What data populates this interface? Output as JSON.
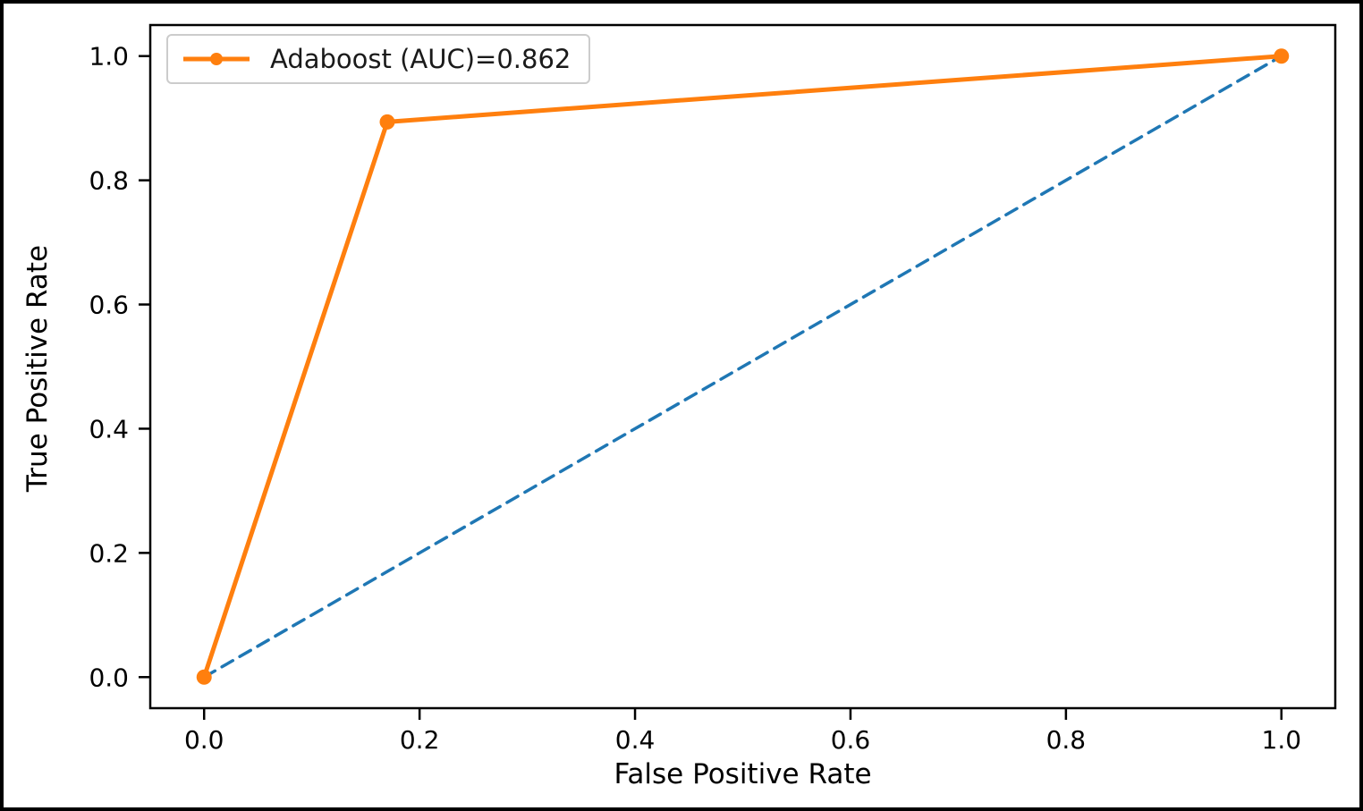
{
  "figure": {
    "background": "#ffffff",
    "border_color": "#000000"
  },
  "chart_data": {
    "type": "line",
    "title": "",
    "xlabel": "False Positive Rate",
    "ylabel": "True Positive Rate",
    "xlim": [
      -0.05,
      1.05
    ],
    "ylim": [
      -0.05,
      1.05
    ],
    "xtick_labels": [
      "0.0",
      "0.2",
      "0.4",
      "0.6",
      "0.8",
      "1.0"
    ],
    "xtick_values": [
      0.0,
      0.2,
      0.4,
      0.6,
      0.8,
      1.0
    ],
    "ytick_labels": [
      "0.0",
      "0.2",
      "0.4",
      "0.6",
      "0.8",
      "1.0"
    ],
    "ytick_values": [
      0.0,
      0.2,
      0.4,
      0.6,
      0.8,
      1.0
    ],
    "grid": false,
    "auc": 0.862,
    "legend": {
      "position": "upper-left",
      "entries": [
        {
          "label": "Adaboost (AUC)=0.862",
          "color": "#ff7f0e",
          "marker": "circle",
          "line_style": "solid"
        }
      ]
    },
    "series": [
      {
        "name": "adaboost-roc-curve",
        "color": "#ff7f0e",
        "line_style": "solid",
        "line_width": 5,
        "marker": "circle",
        "marker_radius": 8.5,
        "x": [
          0.0,
          0.17,
          1.0
        ],
        "y": [
          0.0,
          0.894,
          1.0
        ]
      },
      {
        "name": "chance-diagonal",
        "color": "#1f77b4",
        "line_style": "dashed",
        "line_width": 3.5,
        "marker": "none",
        "x": [
          0.0,
          1.0
        ],
        "y": [
          0.0,
          1.0
        ]
      }
    ]
  }
}
